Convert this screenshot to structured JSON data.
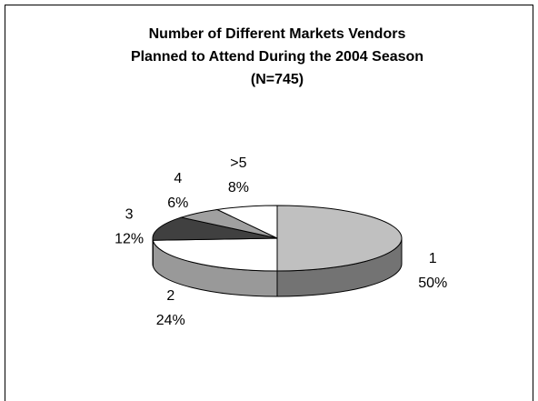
{
  "chart_data": {
    "type": "pie3d",
    "title": [
      "Number of Different Markets Vendors",
      "Planned to Attend During the 2004 Season"
    ],
    "subtitle": "(N=745)",
    "categories": [
      "1",
      "2",
      "3",
      "4",
      ">5"
    ],
    "values": [
      50,
      24,
      12,
      6,
      8
    ],
    "value_labels": [
      "50%",
      "24%",
      "12%",
      "6%",
      "8%"
    ],
    "colors": [
      "#c0c0c0",
      "#ffffff",
      "#404040",
      "#a0a0a0",
      "#ffffff"
    ]
  }
}
